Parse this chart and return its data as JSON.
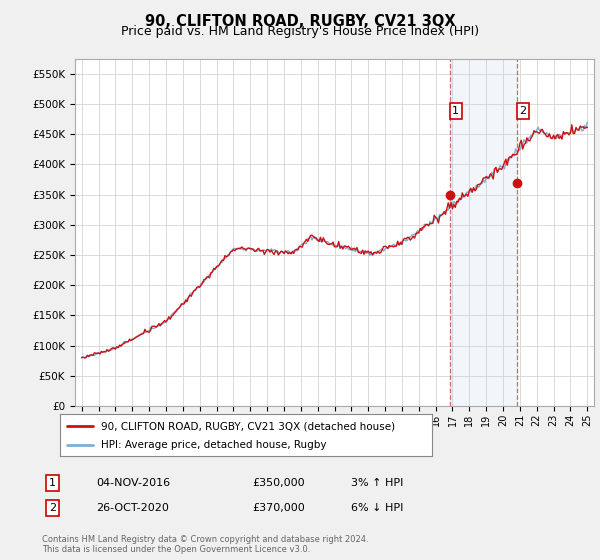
{
  "title": "90, CLIFTON ROAD, RUGBY, CV21 3QX",
  "subtitle": "Price paid vs. HM Land Registry's House Price Index (HPI)",
  "title_fontsize": 10.5,
  "subtitle_fontsize": 9,
  "background_color": "#f0f0f0",
  "plot_background": "#ffffff",
  "grid_color": "#cccccc",
  "hpi_color": "#7bafd4",
  "price_color": "#cc1111",
  "sale1_x": 2016.84,
  "sale1_y": 350000,
  "sale2_x": 2020.82,
  "sale2_y": 370000,
  "xmin": 1994.6,
  "xmax": 2025.4,
  "ymin": 0,
  "ymax": 575000,
  "yticks": [
    0,
    50000,
    100000,
    150000,
    200000,
    250000,
    300000,
    350000,
    400000,
    450000,
    500000,
    550000
  ],
  "footer": "Contains HM Land Registry data © Crown copyright and database right 2024.\nThis data is licensed under the Open Government Licence v3.0.",
  "legend_line1": "90, CLIFTON ROAD, RUGBY, CV21 3QX (detached house)",
  "legend_line2": "HPI: Average price, detached house, Rugby",
  "table_row1": [
    "1",
    "04-NOV-2016",
    "£350,000",
    "3% ↑ HPI"
  ],
  "table_row2": [
    "2",
    "26-OCT-2020",
    "£370,000",
    "6% ↓ HPI"
  ]
}
